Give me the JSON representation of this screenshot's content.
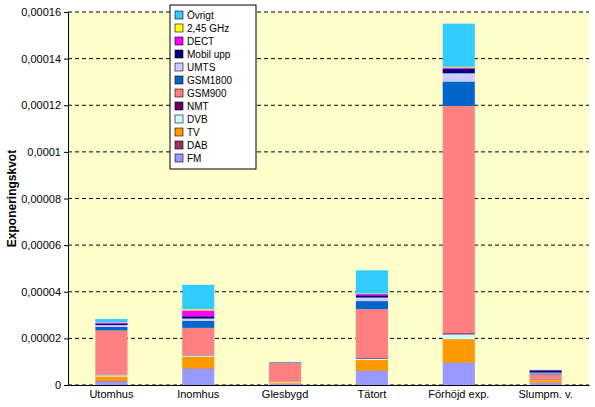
{
  "chart_data": {
    "type": "bar",
    "stacked": true,
    "grid": true,
    "legend": "top-left",
    "y_label": "Exponeringskvot",
    "categories": [
      "Utomhus",
      "Inomhus",
      "Glesbygd",
      "Tätort",
      "Förhöjd exp.",
      "Slumpm. v."
    ],
    "ylim": [
      0,
      0.00016
    ],
    "yticks": [
      0,
      {
        "value": 2e-05,
        "label": "0,00002"
      },
      {
        "value": 4e-05,
        "label": "0,00004"
      },
      {
        "value": 6e-05,
        "label": "0,00006"
      },
      {
        "value": 8e-05,
        "label": "0,00008"
      },
      {
        "value": 0.0001,
        "label": "0,0001"
      },
      {
        "value": 0.00012,
        "label": "0,00012"
      },
      {
        "value": 0.00014,
        "label": "0,00014"
      },
      {
        "value": 0.00016,
        "label": "0,00016"
      }
    ],
    "series": [
      {
        "name": "FM",
        "color": "#9999ff",
        "values": [
          1.5e-06,
          7e-06,
          5e-07,
          6e-06,
          9.5e-06,
          1e-06
        ]
      },
      {
        "name": "DAB",
        "color": "#993366",
        "values": [
          2e-07,
          2e-07,
          1e-07,
          2e-07,
          2e-07,
          1e-07
        ]
      },
      {
        "name": "TV",
        "color": "#ff9900",
        "values": [
          2e-06,
          5e-06,
          5e-07,
          4.5e-06,
          1e-05,
          1e-06
        ]
      },
      {
        "name": "DVB",
        "color": "#ccffff",
        "values": [
          5e-07,
          5e-07,
          2e-07,
          5e-07,
          2e-06,
          2e-07
        ]
      },
      {
        "name": "NMT",
        "color": "#660066",
        "values": [
          2e-07,
          3e-07,
          1e-07,
          3e-07,
          5e-07,
          2e-07
        ]
      },
      {
        "name": "GSM900",
        "color": "#ff8080",
        "values": [
          1.9e-05,
          1.15e-05,
          8e-06,
          2.1e-05,
          9.75e-05,
          2e-06
        ]
      },
      {
        "name": "GSM1800",
        "color": "#0066cc",
        "values": [
          1.5e-06,
          3e-06,
          2e-07,
          3.5e-06,
          1.05e-05,
          5e-07
        ]
      },
      {
        "name": "UMTS",
        "color": "#ccccff",
        "values": [
          8e-07,
          1e-06,
          1e-07,
          1.5e-06,
          3.5e-06,
          3e-07
        ]
      },
      {
        "name": "Mobil upp",
        "color": "#000080",
        "values": [
          5e-07,
          1e-06,
          1e-07,
          1e-06,
          2e-06,
          1e-06
        ]
      },
      {
        "name": "DECT",
        "color": "#ff00ff",
        "values": [
          5e-07,
          2.5e-06,
          0,
          5e-07,
          5e-07,
          1e-07
        ]
      },
      {
        "name": "2,45 GHz",
        "color": "#ffff00",
        "values": [
          1e-07,
          5e-07,
          0,
          2e-07,
          3e-07,
          0
        ]
      },
      {
        "name": "Övrigt",
        "color": "#33ccff",
        "values": [
          1.5e-06,
          1.05e-05,
          1e-07,
          1e-05,
          1.85e-05,
          1e-07
        ]
      }
    ]
  }
}
